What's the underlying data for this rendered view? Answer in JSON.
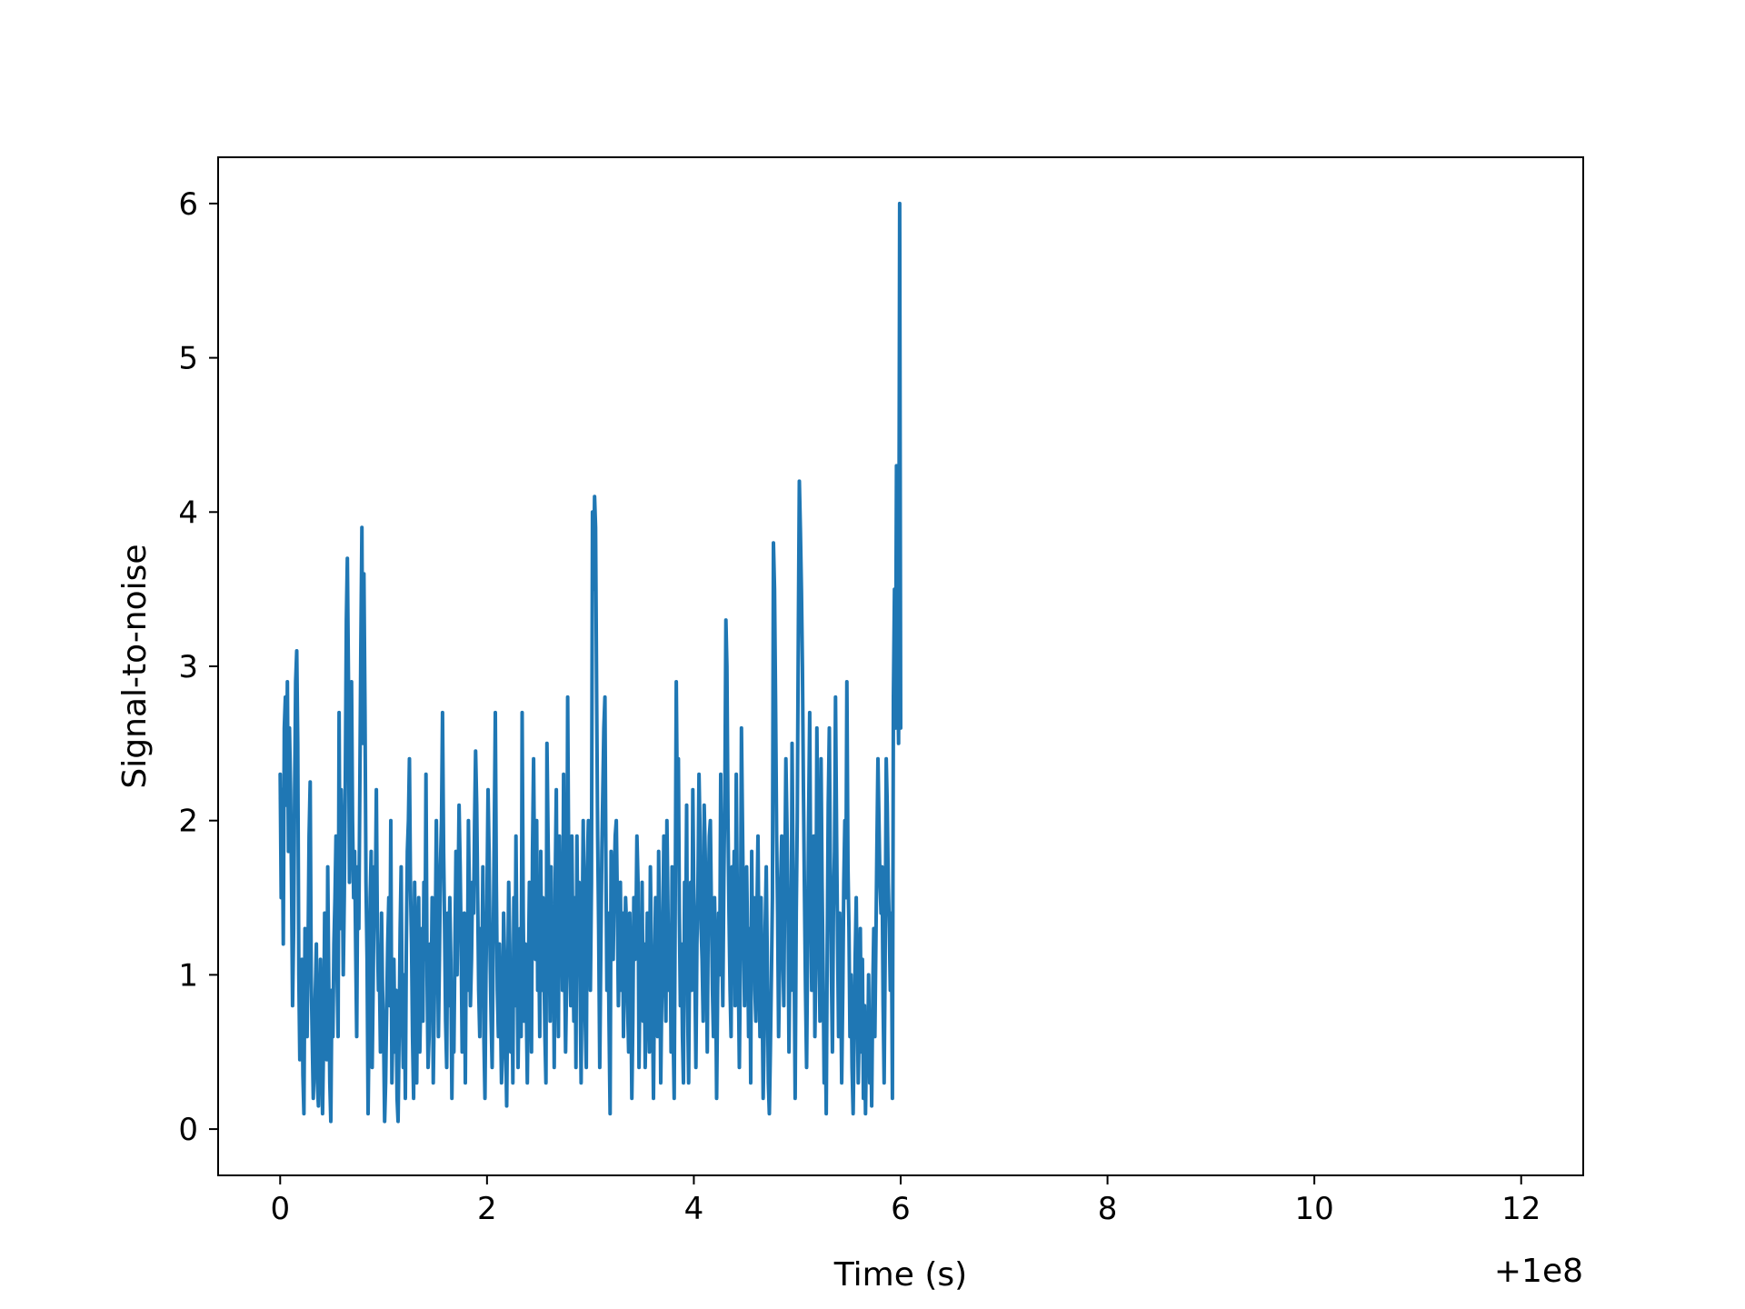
{
  "chart_data": {
    "type": "line",
    "title": "",
    "xlabel": "Time (s)",
    "ylabel": "Signal-to-noise",
    "x_offset_label": "+1e8",
    "xlim": [
      -0.6,
      12.6
    ],
    "ylim": [
      -0.3,
      6.3
    ],
    "xticks": [
      0,
      2,
      4,
      6,
      8,
      10,
      12
    ],
    "xtick_labels": [
      "0",
      "2",
      "4",
      "6",
      "8",
      "10",
      "12"
    ],
    "yticks": [
      0,
      1,
      2,
      3,
      4,
      5,
      6
    ],
    "ytick_labels": [
      "0",
      "1",
      "2",
      "3",
      "4",
      "5",
      "6"
    ],
    "grid": false,
    "line_color": "#1f77b4",
    "series": [
      {
        "x_start": 0,
        "x_step": 0.01,
        "values": [
          2.3,
          1.5,
          2.2,
          1.2,
          2.6,
          2.8,
          2.1,
          2.9,
          1.8,
          2.6,
          2.2,
          1.6,
          0.8,
          1.3,
          2.2,
          2.9,
          3.1,
          2.5,
          1.0,
          0.45,
          0.7,
          1.1,
          0.35,
          0.1,
          1.3,
          0.9,
          0.6,
          1.2,
          1.9,
          2.25,
          1.0,
          0.6,
          0.2,
          0.5,
          0.9,
          1.2,
          0.3,
          0.15,
          0.7,
          1.1,
          0.5,
          0.1,
          0.6,
          1.4,
          1.0,
          0.45,
          1.7,
          0.9,
          0.3,
          0.05,
          0.9,
          0.6,
          1.2,
          1.5,
          1.9,
          1.0,
          0.6,
          2.7,
          1.3,
          2.2,
          1.8,
          1.0,
          1.5,
          2.3,
          3.3,
          3.7,
          2.9,
          1.6,
          2.2,
          2.9,
          2.0,
          1.5,
          1.8,
          1.2,
          0.6,
          1.7,
          1.3,
          2.2,
          3.1,
          3.9,
          2.5,
          3.6,
          2.7,
          1.6,
          1.1,
          0.1,
          0.7,
          1.5,
          1.8,
          0.4,
          1.0,
          1.7,
          1.5,
          2.2,
          1.3,
          0.9,
          1.0,
          0.5,
          1.4,
          0.9,
          0.6,
          0.05,
          0.3,
          0.8,
          1.2,
          1.5,
          0.8,
          2.0,
          0.3,
          0.7,
          1.1,
          0.5,
          0.9,
          0.2,
          0.05,
          0.6,
          1.3,
          1.7,
          0.8,
          0.4,
          1.0,
          0.2,
          1.2,
          1.8,
          2.0,
          2.4,
          1.6,
          1.2,
          0.6,
          0.2,
          1.6,
          1.0,
          0.3,
          1.2,
          1.5,
          0.5,
          0.9,
          1.3,
          0.7,
          1.6,
          1.1,
          2.3,
          1.0,
          0.4,
          0.6,
          1.2,
          0.9,
          1.5,
          0.3,
          0.8,
          1.3,
          2.0,
          1.4,
          0.6,
          1.1,
          1.7,
          2.0,
          2.7,
          1.8,
          1.3,
          0.7,
          0.4,
          1.4,
          0.8,
          1.5,
          1.1,
          0.2,
          0.8,
          0.5,
          1.2,
          1.8,
          1.0,
          1.5,
          2.1,
          1.7,
          1.2,
          0.5,
          1.1,
          1.4,
          0.3,
          1.3,
          0.9,
          2.0,
          1.5,
          0.8,
          1.1,
          1.6,
          1.4,
          2.0,
          2.45,
          2.1,
          1.5,
          0.9,
          0.6,
          1.3,
          1.0,
          1.7,
          0.6,
          0.2,
          1.0,
          1.5,
          2.2,
          1.8,
          1.1,
          0.7,
          0.4,
          1.2,
          1.9,
          2.7,
          1.6,
          0.9,
          0.6,
          1.2,
          0.8,
          0.3,
          0.5,
          1.4,
          1.1,
          0.6,
          0.15,
          0.9,
          1.6,
          1.2,
          0.5,
          1.0,
          0.3,
          1.5,
          0.8,
          1.9,
          1.1,
          0.4,
          0.9,
          1.3,
          0.6,
          2.7,
          1.4,
          0.7,
          1.2,
          0.8,
          0.3,
          1.0,
          1.6,
          1.2,
          0.5,
          1.8,
          2.4,
          1.6,
          1.1,
          2.0,
          0.9,
          1.3,
          0.6,
          1.8,
          0.9,
          1.5,
          1.1,
          0.6,
          0.3,
          2.5,
          1.9,
          1.4,
          0.7,
          1.7,
          1.0,
          1.3,
          0.4,
          1.6,
          2.2,
          1.1,
          0.6,
          1.9,
          1.2,
          1.5,
          0.9,
          2.3,
          1.1,
          0.5,
          1.0,
          2.8,
          1.7,
          1.2,
          0.8,
          1.9,
          1.2,
          0.7,
          1.5,
          0.4,
          1.9,
          1.0,
          1.6,
          0.9,
          0.3,
          1.2,
          2.0,
          1.3,
          0.7,
          0.4,
          1.7,
          2.0,
          1.5,
          0.9,
          1.6,
          4.0,
          3.5,
          4.1,
          3.9,
          2.8,
          1.9,
          1.3,
          0.4,
          1.1,
          1.8,
          2.2,
          2.6,
          2.8,
          1.7,
          0.9,
          1.4,
          0.7,
          0.1,
          1.8,
          1.4,
          1.1,
          1.6,
          1.9,
          2.0,
          1.5,
          0.8,
          1.2,
          1.6,
          0.9,
          1.4,
          0.6,
          1.1,
          1.5,
          1.3,
          0.8,
          0.5,
          1.4,
          1.0,
          0.2,
          0.7,
          1.5,
          1.1,
          1.3,
          1.9,
          1.6,
          0.4,
          1.0,
          0.8,
          1.6,
          0.7,
          1.2,
          0.4,
          0.9,
          1.4,
          1.0,
          0.5,
          1.7,
          1.1,
          0.8,
          0.2,
          1.0,
          1.5,
          1.1,
          0.6,
          1.8,
          1.2,
          0.3,
          0.9,
          1.3,
          1.9,
          1.0,
          0.7,
          2.0,
          1.4,
          0.9,
          1.3,
          0.5,
          1.7,
          0.6,
          0.2,
          1.4,
          2.9,
          2.1,
          2.4,
          1.4,
          0.8,
          1.2,
          0.6,
          0.3,
          1.6,
          1.1,
          2.1,
          0.8,
          0.3,
          1.3,
          1.6,
          0.9,
          2.2,
          1.5,
          1.0,
          0.4,
          1.2,
          1.6,
          2.3,
          1.9,
          1.3,
          1.1,
          0.7,
          2.1,
          1.8,
          1.2,
          0.5,
          1.5,
          1.9,
          2.0,
          1.4,
          0.9,
          0.6,
          1.5,
          1.1,
          0.2,
          0.9,
          1.4,
          1.0,
          2.3,
          1.3,
          0.8,
          1.6,
          2.2,
          3.3,
          3.0,
          2.0,
          1.4,
          0.9,
          0.6,
          1.7,
          1.2,
          1.8,
          0.8,
          2.3,
          1.5,
          1.0,
          0.4,
          1.1,
          2.6,
          2.0,
          1.4,
          0.8,
          1.5,
          1.7,
          1.2,
          0.6,
          1.3,
          0.3,
          1.8,
          1.0,
          1.5,
          0.9,
          0.7,
          1.4,
          1.9,
          1.1,
          0.6,
          1.5,
          0.9,
          0.2,
          0.6,
          1.3,
          1.7,
          1.1,
          0.3,
          0.1,
          0.5,
          1.0,
          1.5,
          3.8,
          3.5,
          2.8,
          1.9,
          1.4,
          0.6,
          1.1,
          1.6,
          1.9,
          1.2,
          0.8,
          1.7,
          2.4,
          2.0,
          1.5,
          0.5,
          1.2,
          0.9,
          2.5,
          1.6,
          1.1,
          0.2,
          1.4,
          2.0,
          3.2,
          4.2,
          3.9,
          3.5,
          3.0,
          2.2,
          1.5,
          0.9,
          0.4,
          1.2,
          2.0,
          2.7,
          1.6,
          0.9,
          1.4,
          1.9,
          0.6,
          1.1,
          2.6,
          1.8,
          1.3,
          0.7,
          2.4,
          1.6,
          1.0,
          0.3,
          0.8,
          0.1,
          1.2,
          2.1,
          2.6,
          1.7,
          1.0,
          0.5,
          1.4,
          1.8,
          2.8,
          1.9,
          1.2,
          0.6,
          1.4,
          1.0,
          0.3,
          0.9,
          1.6,
          2.0,
          1.5,
          2.9,
          1.7,
          1.3,
          0.6,
          1.0,
          0.4,
          0.1,
          0.6,
          1.1,
          1.5,
          0.9,
          0.3,
          0.7,
          1.3,
          0.5,
          1.1,
          0.2,
          0.8,
          0.1,
          0.6,
          0.4,
          1.0,
          0.3,
          0.7,
          0.15,
          0.9,
          1.3,
          0.6,
          1.2,
          1.8,
          2.4,
          2.0,
          1.6,
          1.4,
          1.7,
          0.8,
          0.3,
          1.1,
          2.4,
          2.1,
          1.6,
          1.3,
          0.9,
          1.4,
          0.2,
          2.8,
          3.5,
          2.6,
          4.3,
          3.0,
          2.5,
          6.0,
          2.6
        ]
      }
    ]
  }
}
